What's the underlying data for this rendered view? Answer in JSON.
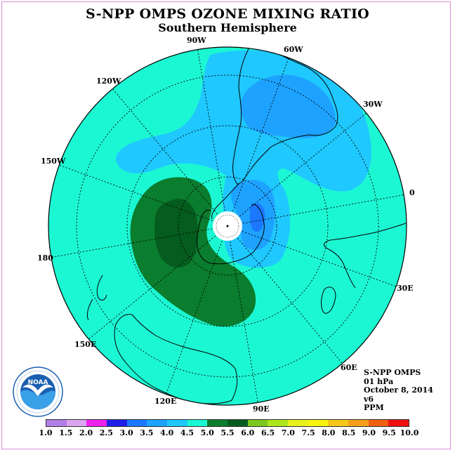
{
  "header": {
    "title": "S-NPP OMPS OZONE MIXING RATIO",
    "subtitle": "Southern Hemisphere"
  },
  "map": {
    "projection": "south-polar-stereographic",
    "meridian_labels": [
      {
        "name": "90W",
        "key": "m90w"
      },
      {
        "name": "60W",
        "key": "m60w"
      },
      {
        "name": "30W",
        "key": "m30w"
      },
      {
        "name": "0",
        "key": "m0"
      },
      {
        "name": "30E",
        "key": "m30e"
      },
      {
        "name": "60E",
        "key": "m60e"
      },
      {
        "name": "90E",
        "key": "m90e"
      },
      {
        "name": "120E",
        "key": "m120e"
      },
      {
        "name": "150E",
        "key": "m150e"
      },
      {
        "name": "180",
        "key": "m180"
      },
      {
        "name": "150W",
        "key": "m150w"
      },
      {
        "name": "120W",
        "key": "m120w"
      }
    ],
    "fill_colors": {
      "background_ppm_4_5_to_5_0": "#1cf7d3",
      "ppm_4_0_to_4_5": "#1fc8ff",
      "ppm_3_5_to_4_0": "#1ea2ff",
      "ppm_3_0_to_3_5": "#1b78ff",
      "ppm_5_0_to_5_5": "#0a7d2e",
      "ppm_5_5_to_6_0": "#055c1f"
    }
  },
  "info": {
    "product": "S-NPP OMPS",
    "level": "01 hPa",
    "date": "October 8, 2014",
    "version": "v6",
    "units": "PPM"
  },
  "logo": {
    "text": "NOAA",
    "icon": "noaa-logo"
  },
  "colorbar": {
    "ticks": [
      "1.0",
      "1.5",
      "2.0",
      "2.5",
      "3.0",
      "3.5",
      "4.0",
      "4.5",
      "5.0",
      "5.5",
      "6.0",
      "6.5",
      "7.0",
      "7.5",
      "8.0",
      "8.5",
      "9.0",
      "9.5",
      "10.0"
    ],
    "colors": [
      "#b27fe6",
      "#dca5f0",
      "#ee22ee",
      "#2020e8",
      "#1b78ff",
      "#1ea2ff",
      "#1fc8ff",
      "#1cf7d3",
      "#0a7d2e",
      "#055c1f",
      "#7ec81e",
      "#aee61e",
      "#e8f01e",
      "#f5f510",
      "#f4c81a",
      "#f4a01a",
      "#f06010",
      "#ee1010",
      "#8c5a3c"
    ]
  }
}
